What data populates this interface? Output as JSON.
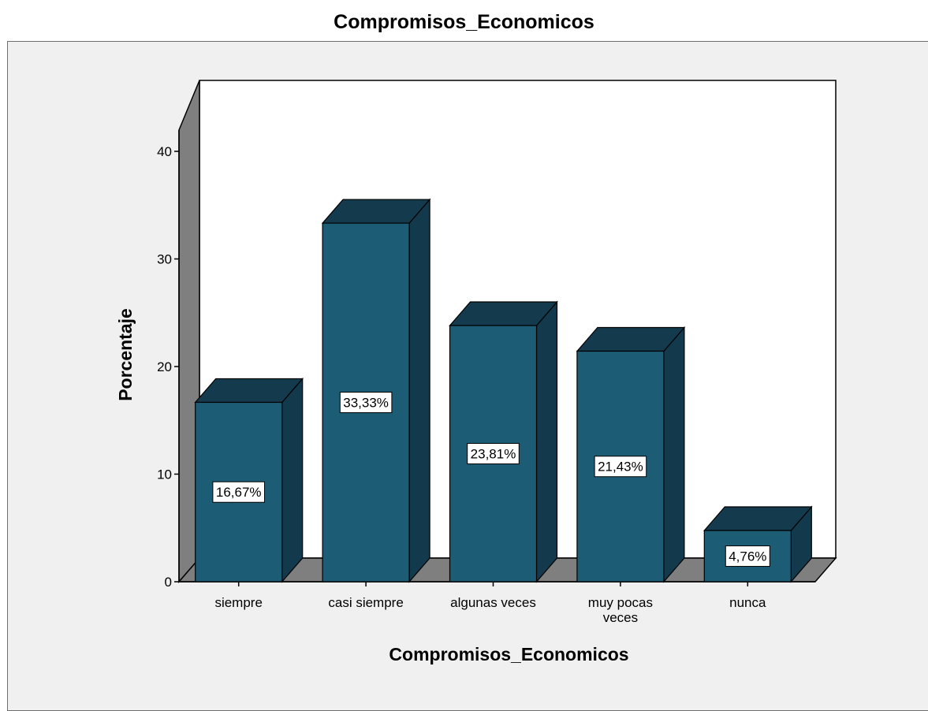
{
  "chart_data": {
    "type": "bar",
    "title": "Compromisos_Economicos",
    "xlabel": "Compromisos_Economicos",
    "ylabel": "Porcentaje",
    "categories": [
      [
        "siempre"
      ],
      [
        "casi siempre"
      ],
      [
        "algunas veces"
      ],
      [
        "muy pocas",
        "veces"
      ],
      [
        "nunca"
      ]
    ],
    "values": [
      16.67,
      33.33,
      23.81,
      21.43,
      4.76
    ],
    "data_labels": [
      "16,67%",
      "33,33%",
      "23,81%",
      "21,43%",
      "4,76%"
    ],
    "ylim": [
      0,
      40
    ],
    "yticks": [
      0,
      10,
      20,
      30,
      40
    ],
    "grid": false,
    "style": "3d",
    "colors": {
      "bar_front": "#1d5c75",
      "bar_side": "#133a4c",
      "bar_top": "#143b4d",
      "wall": "#7f7f7f",
      "plot_bg": "#ffffff",
      "frame_bg": "#f0f0f0"
    }
  }
}
